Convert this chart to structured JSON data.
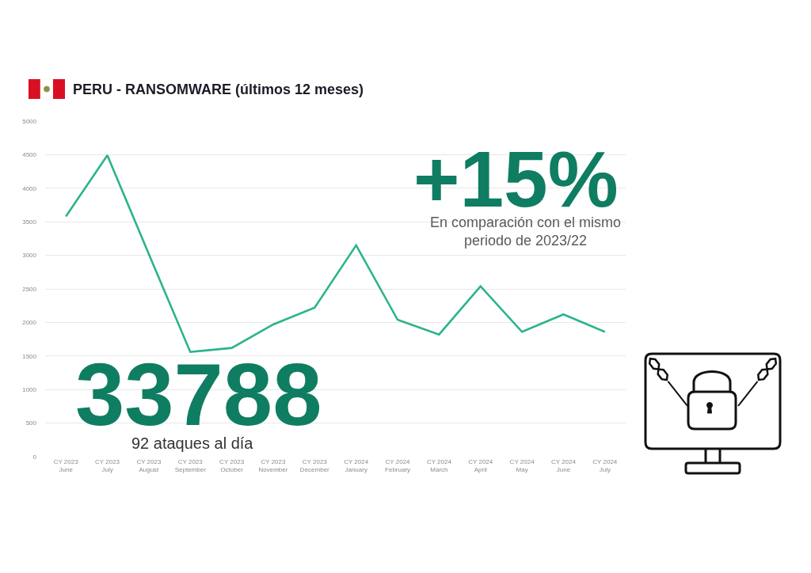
{
  "chart_data": {
    "type": "line",
    "title": "PERU - RANSOMWARE (últimos 12 meses)",
    "categories": [
      "CY 2023\nJune",
      "CY 2023\nJuly",
      "CY 2023\nAugust",
      "CY 2023\nSeptember",
      "CY 2023\nOctober",
      "CY 2023\nNovember",
      "CY 2023\nDecember",
      "CY 2024\nJanuary",
      "CY 2024\nFebruary",
      "CY 2024\nMarch",
      "CY 2024\nApril",
      "CY 2024\nMay",
      "CY 2024\nJune",
      "CY 2024\nJuly"
    ],
    "values": [
      3580,
      4490,
      3020,
      1560,
      1620,
      1970,
      2220,
      3150,
      2040,
      1820,
      2540,
      1860,
      2120,
      1860
    ],
    "color": "#2bb38e",
    "line_style": "solid",
    "ylim": [
      0,
      5000
    ],
    "yticks": [
      0,
      500,
      1000,
      1500,
      2000,
      2500,
      3000,
      3500,
      4000,
      4500,
      5000
    ],
    "grid": "y",
    "annotations": [
      "+15%",
      "En comparación con el mismo\nperiodo de 2023/22",
      "33788",
      "92 ataques al día"
    ]
  }
}
